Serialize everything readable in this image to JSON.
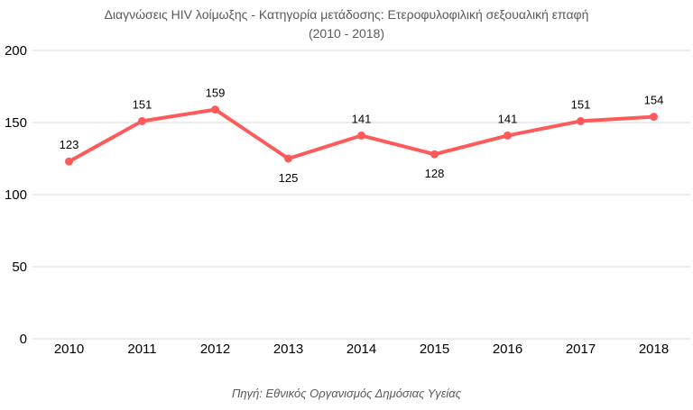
{
  "chart_data": {
    "type": "line",
    "title": "Διαγνώσεις HIV λοίμωξης - Κατηγορία μετάδοσης: Ετεροφυλοφιλική σεξουαλική επαφή",
    "subtitle": "(2010 - 2018)",
    "categories": [
      "2010",
      "2011",
      "2012",
      "2013",
      "2014",
      "2015",
      "2016",
      "2017",
      "2018"
    ],
    "values": [
      123,
      151,
      159,
      125,
      141,
      128,
      141,
      151,
      154
    ],
    "ylim": [
      0,
      200
    ],
    "yticks": [
      0,
      50,
      100,
      150,
      200
    ],
    "xlabel": "",
    "ylabel": "",
    "grid": true,
    "legend": "none",
    "data_labels": true,
    "line_color": "#ff5a5a",
    "source_note": "Πηγή: Εθνικός Οργανισμός Δημόσιας Υγείας"
  }
}
